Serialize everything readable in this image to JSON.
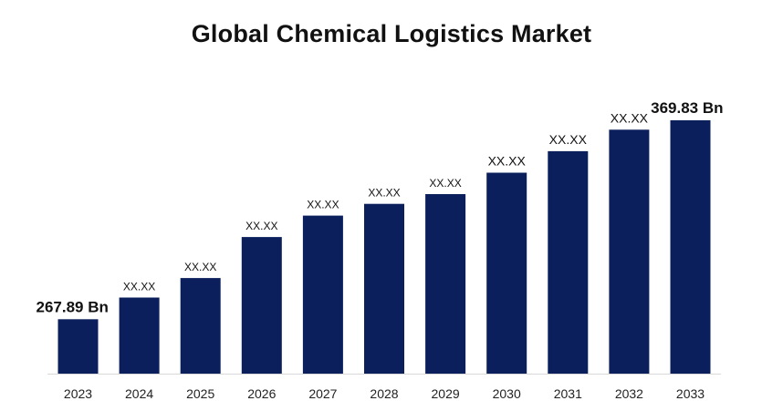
{
  "chart_data": {
    "type": "bar",
    "title": "Global Chemical Logistics Market",
    "xlabel": "",
    "ylabel": "",
    "categories": [
      "2023",
      "2024",
      "2025",
      "2026",
      "2027",
      "2028",
      "2029",
      "2030",
      "2031",
      "2032",
      "2033"
    ],
    "values": [
      267.89,
      279,
      289,
      310,
      321,
      327,
      332,
      343,
      354,
      365,
      369.83
    ],
    "data_labels": [
      "267.89 Bn",
      "XX.XX",
      "XX.XX",
      "XX.XX",
      "XX.XX",
      "XX.XX",
      "XX.XX",
      "XX.XX",
      "XX.XX",
      "XX.XX",
      "369.83 Bn"
    ],
    "ylim": [
      240,
      380
    ],
    "grid": false,
    "legend": "none",
    "bar_color": "#0B1F5C",
    "axis_color": "#D9D9D9"
  }
}
